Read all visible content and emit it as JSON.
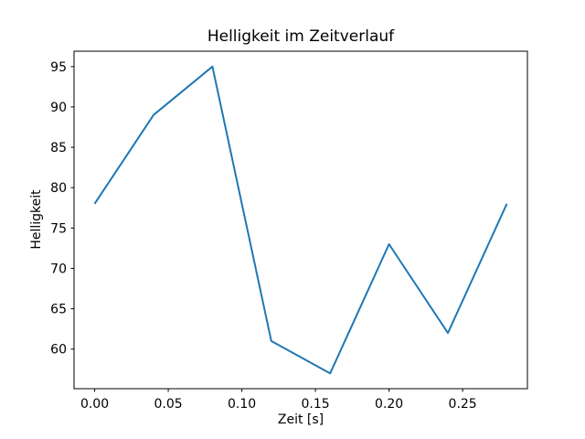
{
  "chart_data": {
    "type": "line",
    "title": "Helligkeit im Zeitverlauf",
    "xlabel": "Zeit [s]",
    "ylabel": "Helligkeit",
    "x": [
      0.0,
      0.04,
      0.08,
      0.12,
      0.16,
      0.2,
      0.24,
      0.28
    ],
    "values": [
      78,
      89,
      95,
      61,
      57,
      73,
      62,
      78
    ],
    "xlim": [
      -0.014,
      0.294
    ],
    "ylim": [
      55.1,
      96.9
    ],
    "xticks": [
      0.0,
      0.05,
      0.1,
      0.15,
      0.2,
      0.25
    ],
    "xtick_labels": [
      "0.00",
      "0.05",
      "0.10",
      "0.15",
      "0.20",
      "0.25"
    ],
    "yticks": [
      60,
      65,
      70,
      75,
      80,
      85,
      90,
      95
    ],
    "ytick_labels": [
      "60",
      "65",
      "70",
      "75",
      "80",
      "85",
      "90",
      "95"
    ],
    "line_color": "#1f77b4",
    "axis_color": "#000000",
    "background": "#ffffff",
    "grid": false,
    "legend_position": "none"
  }
}
